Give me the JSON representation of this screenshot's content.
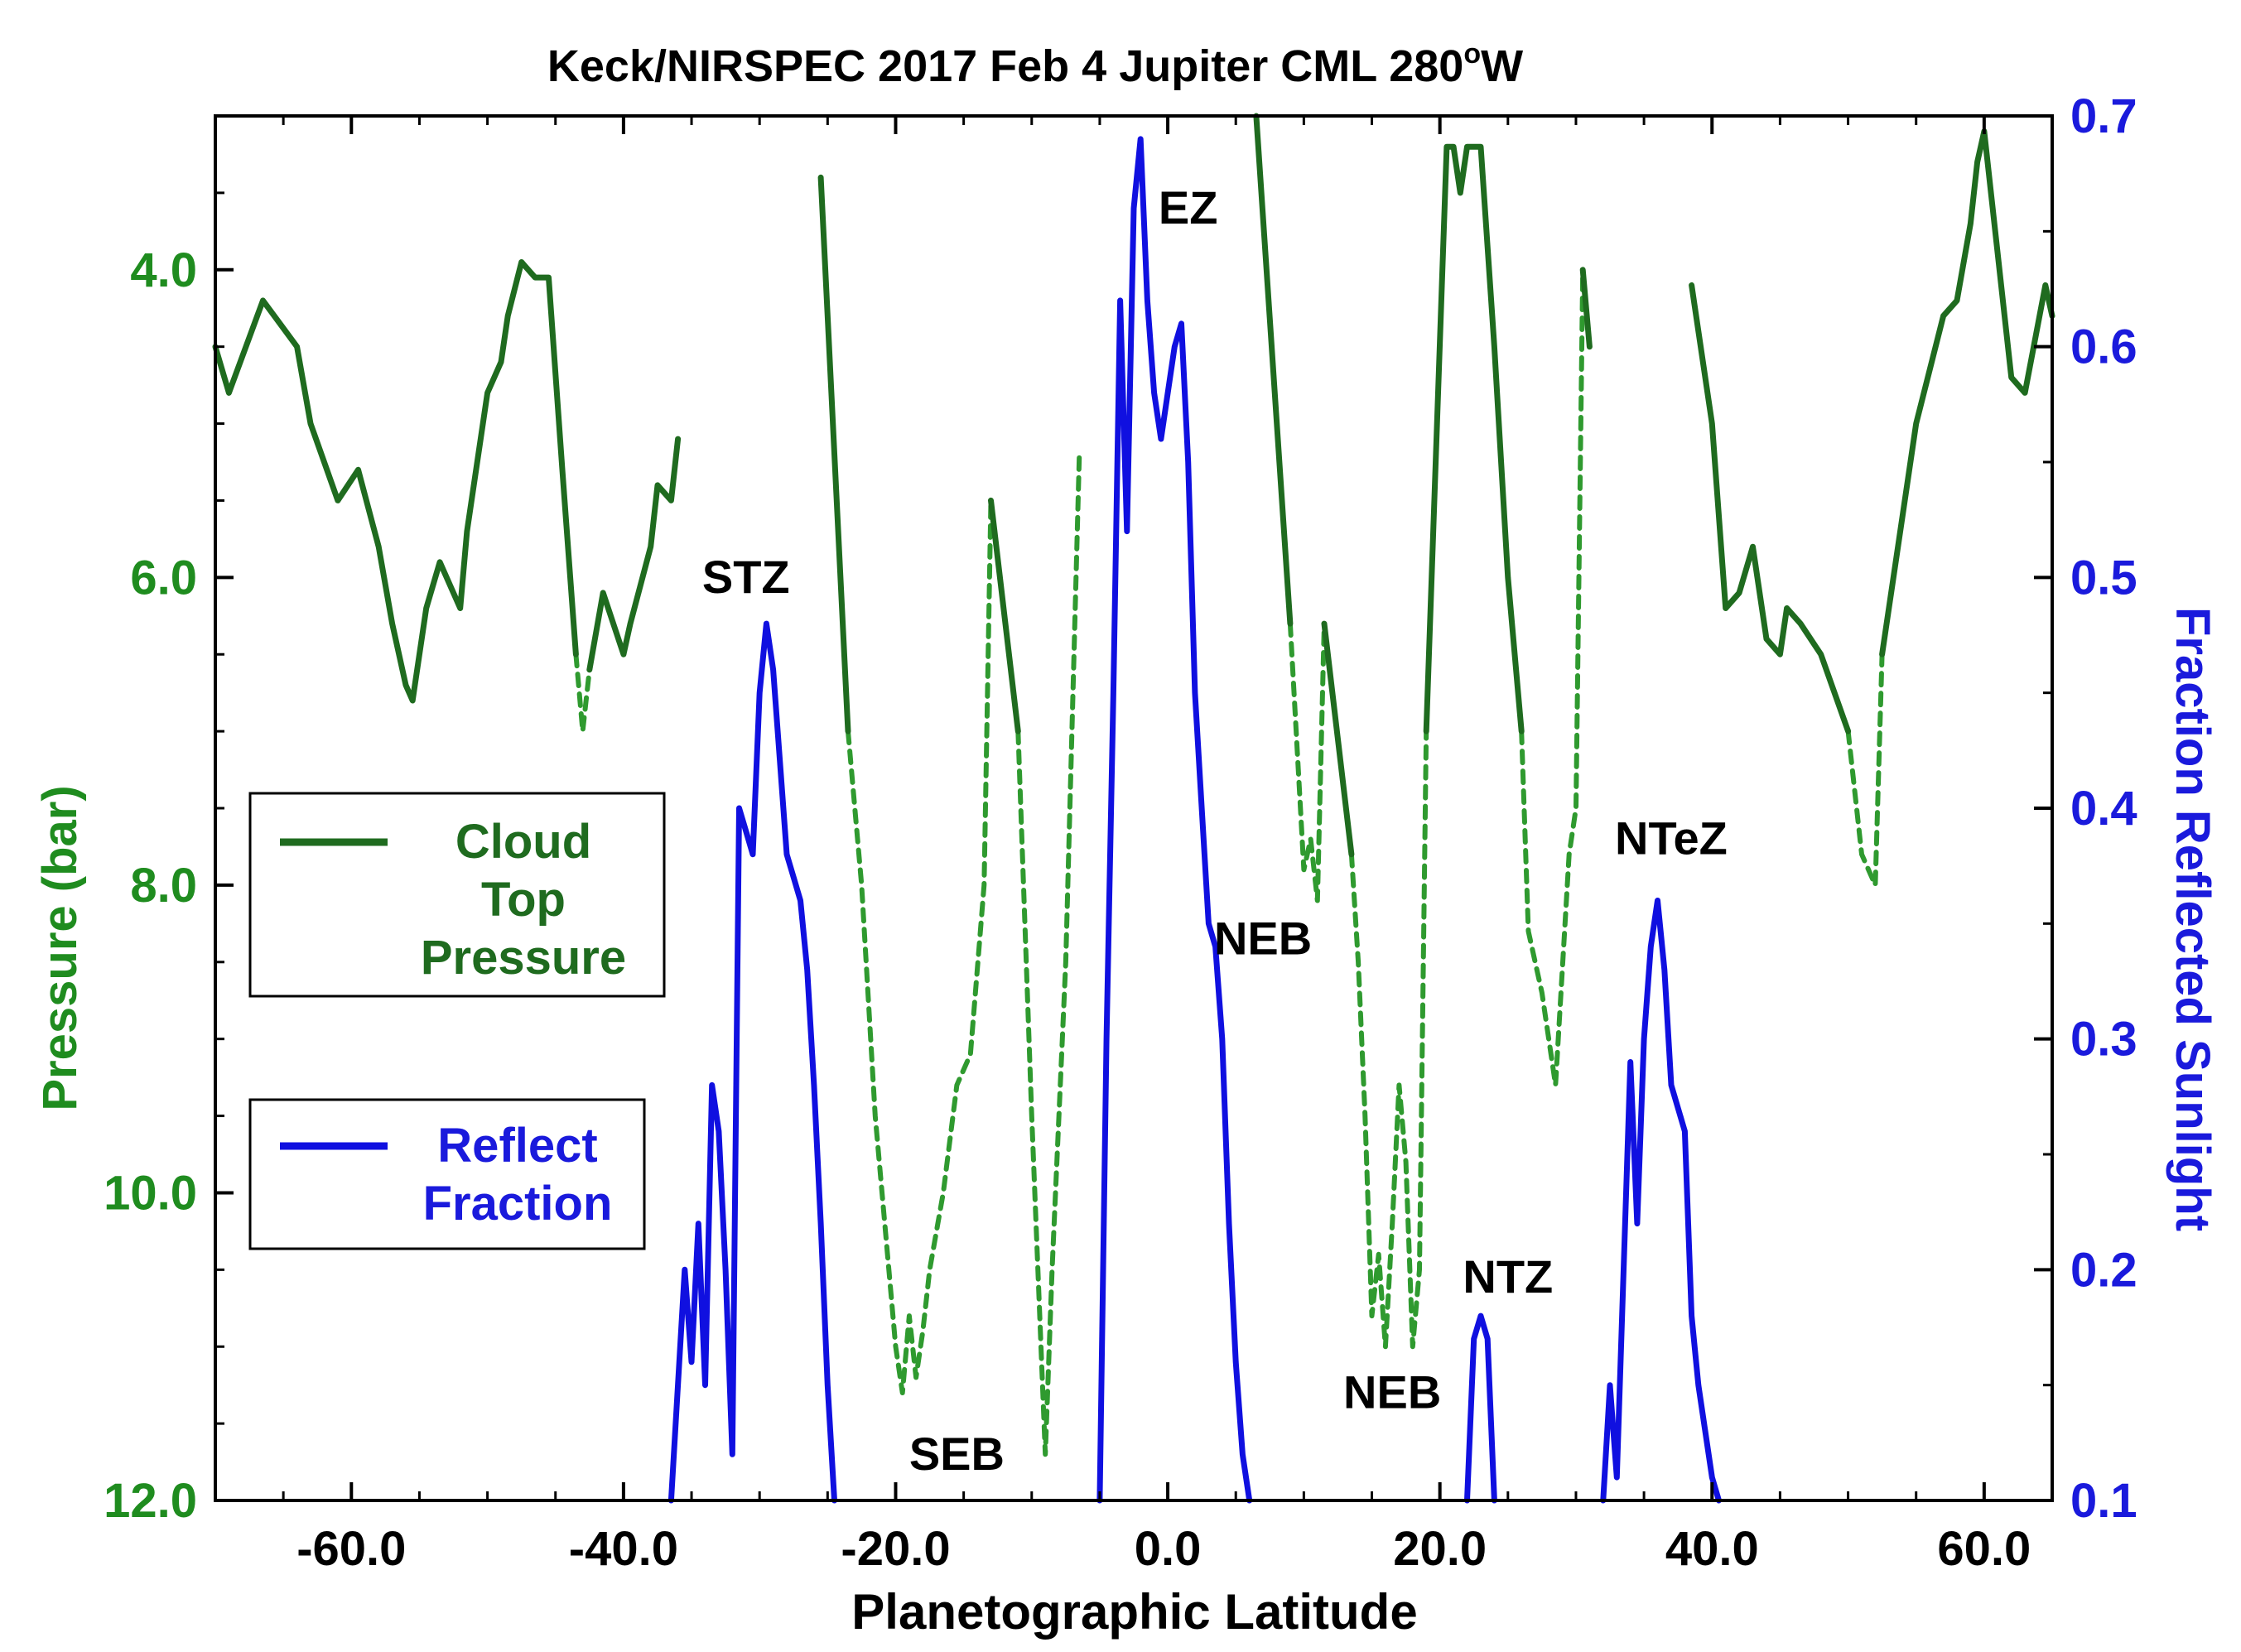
{
  "chart_data": {
    "type": "line",
    "title": "Keck/NIRSPEC 2017 Feb 4 Jupiter CML 280",
    "title_superscript": "o",
    "title_suffix": "W",
    "xlabel": "Planetographic Latitude",
    "ylabel_left": "Pressure (bar)",
    "ylabel_right": "Fraction Reflected Sunlight",
    "xlim": [
      -70,
      65
    ],
    "ylim_left": [
      12.0,
      3.0
    ],
    "ylim_right": [
      0.1,
      0.7
    ],
    "x_ticks": [
      "-60.0",
      "-40.0",
      "-20.0",
      "0.0",
      "20.0",
      "40.0",
      "60.0"
    ],
    "x_tick_values": [
      -60,
      -40,
      -20,
      0,
      20,
      40,
      60
    ],
    "left_ticks": [
      "4.0",
      "6.0",
      "8.0",
      "10.0",
      "12.0"
    ],
    "left_tick_values": [
      4,
      6,
      8,
      10,
      12
    ],
    "right_ticks": [
      "0.7",
      "0.6",
      "0.5",
      "0.4",
      "0.3",
      "0.2",
      "0.1"
    ],
    "right_tick_values": [
      0.7,
      0.6,
      0.5,
      0.4,
      0.3,
      0.2,
      0.1
    ],
    "colors": {
      "cloud": "#1f6b1f",
      "cloud_dashed": "#2f9a2f",
      "reflect": "#1010e0",
      "left_axis": "#1f8c1f",
      "right_axis": "#1a1adc"
    },
    "legend": [
      {
        "lines": [
          "Cloud",
          "Top",
          "Pressure"
        ],
        "color": "#1f6b1f"
      },
      {
        "lines": [
          "Reflect",
          "Fraction"
        ],
        "color": "#1a1adc"
      }
    ],
    "annotations": [
      {
        "text": "STZ",
        "x": -31,
        "y": 6.1
      },
      {
        "text": "EZ",
        "x": 1.5,
        "y": 3.7
      },
      {
        "text": "SEB",
        "x": -15.5,
        "y": 11.8
      },
      {
        "text": "NEB",
        "x": 7,
        "y": 8.45
      },
      {
        "text": "NEB",
        "x": 16.5,
        "y": 11.4
      },
      {
        "text": "NTZ",
        "x": 25,
        "y": 10.65
      },
      {
        "text": "NTeZ",
        "x": 37,
        "y": 7.8
      }
    ],
    "series": [
      {
        "name": "Cloud Top Pressure (solid)",
        "axis": "left",
        "style": "solid",
        "segments": [
          [
            [
              -70,
              4.5
            ],
            [
              -69,
              4.8
            ],
            [
              -66.5,
              4.2
            ],
            [
              -64,
              4.5
            ],
            [
              -63,
              5.0
            ],
            [
              -61,
              5.5
            ],
            [
              -59.5,
              5.3
            ],
            [
              -58,
              5.8
            ],
            [
              -57,
              6.3
            ],
            [
              -56,
              6.7
            ],
            [
              -55.5,
              6.8
            ],
            [
              -54.5,
              6.2
            ],
            [
              -53.5,
              5.9
            ],
            [
              -52,
              6.2
            ],
            [
              -51.5,
              5.7
            ],
            [
              -50,
              4.8
            ],
            [
              -49,
              4.6
            ],
            [
              -48.5,
              4.3
            ],
            [
              -47.5,
              3.95
            ],
            [
              -46.5,
              4.05
            ],
            [
              -45.5,
              4.05
            ],
            [
              -44.5,
              5.3
            ],
            [
              -43.5,
              6.5
            ]
          ],
          [
            [
              -42.5,
              6.6
            ],
            [
              -41.5,
              6.1
            ],
            [
              -40,
              6.5
            ],
            [
              -39.5,
              6.3
            ],
            [
              -38,
              5.8
            ],
            [
              -37.5,
              5.4
            ],
            [
              -36.5,
              5.5
            ],
            [
              -36,
              5.1
            ]
          ],
          [
            [
              -25.5,
              3.4
            ],
            [
              -23.5,
              7.0
            ]
          ],
          [
            [
              -13,
              5.5
            ],
            [
              -11,
              7.0
            ]
          ],
          [
            [
              6.5,
              2.95
            ],
            [
              9,
              6.3
            ]
          ],
          [
            [
              11.5,
              6.3
            ],
            [
              13.5,
              7.8
            ]
          ],
          [
            [
              19,
              7.0
            ],
            [
              20.5,
              3.2
            ],
            [
              21,
              3.2
            ],
            [
              21.5,
              3.5
            ],
            [
              22,
              3.2
            ],
            [
              23,
              3.2
            ],
            [
              24,
              4.5
            ],
            [
              25,
              6.0
            ],
            [
              26,
              7.0
            ]
          ],
          [
            [
              30.5,
              4.0
            ],
            [
              31,
              4.5
            ]
          ],
          [
            [
              38.5,
              4.1
            ],
            [
              40,
              5.0
            ],
            [
              41,
              6.2
            ],
            [
              42,
              6.1
            ],
            [
              43,
              5.8
            ],
            [
              44,
              6.4
            ],
            [
              45,
              6.5
            ],
            [
              45.5,
              6.2
            ],
            [
              46.5,
              6.3
            ],
            [
              48,
              6.5
            ],
            [
              50,
              7.0
            ]
          ],
          [
            [
              52.5,
              6.5
            ],
            [
              54,
              5.6
            ],
            [
              55,
              5.0
            ],
            [
              57,
              4.3
            ],
            [
              58,
              4.2
            ],
            [
              59,
              3.7
            ],
            [
              59.5,
              3.3
            ],
            [
              60,
              3.1
            ],
            [
              62,
              4.7
            ],
            [
              63,
              4.8
            ],
            [
              64.5,
              4.1
            ],
            [
              65,
              4.3
            ]
          ]
        ]
      },
      {
        "name": "Cloud Top Pressure (dashed)",
        "axis": "left",
        "style": "dashed",
        "segments": [
          [
            [
              -43.5,
              6.5
            ],
            [
              -43,
              7.0
            ],
            [
              -42.5,
              6.6
            ]
          ],
          [
            [
              -23.5,
              7.0
            ],
            [
              -22.5,
              8.0
            ],
            [
              -21.5,
              9.5
            ],
            [
              -20.5,
              10.5
            ],
            [
              -20,
              11.0
            ],
            [
              -19.5,
              11.3
            ],
            [
              -19,
              10.8
            ],
            [
              -18.5,
              11.2
            ],
            [
              -18,
              10.9
            ],
            [
              -17.5,
              10.5
            ],
            [
              -16.5,
              10.0
            ],
            [
              -15.5,
              9.3
            ],
            [
              -14.5,
              9.1
            ],
            [
              -13.5,
              8.0
            ],
            [
              -13,
              5.5
            ]
          ],
          [
            [
              -11,
              7.0
            ],
            [
              -10,
              9.5
            ],
            [
              -9,
              11.7
            ],
            [
              -8.5,
              10.5
            ],
            [
              -7.5,
              8.5
            ],
            [
              -6.5,
              5.2
            ]
          ],
          [
            [
              9,
              6.3
            ],
            [
              10,
              7.9
            ],
            [
              10.5,
              7.7
            ],
            [
              11,
              8.1
            ],
            [
              11.5,
              6.3
            ]
          ],
          [
            [
              13.5,
              7.8
            ],
            [
              14,
              8.5
            ],
            [
              14.5,
              9.5
            ],
            [
              15,
              10.8
            ],
            [
              15.5,
              10.4
            ],
            [
              16,
              11.0
            ],
            [
              16.5,
              10.2
            ],
            [
              17,
              9.3
            ],
            [
              17.5,
              9.8
            ],
            [
              18,
              11.0
            ],
            [
              18.5,
              10.5
            ],
            [
              19,
              7.0
            ]
          ],
          [
            [
              26,
              7.0
            ],
            [
              26.5,
              8.3
            ],
            [
              27.5,
              8.7
            ],
            [
              28.5,
              9.3
            ],
            [
              29.5,
              7.8
            ],
            [
              30,
              7.5
            ],
            [
              30.5,
              4.0
            ]
          ],
          [
            [
              50,
              7.0
            ],
            [
              51,
              7.8
            ],
            [
              52,
              8.0
            ],
            [
              52.5,
              6.5
            ]
          ]
        ]
      },
      {
        "name": "Reflect Fraction",
        "axis": "right",
        "style": "solid",
        "segments": [
          [
            [
              -36.5,
              0.1
            ],
            [
              -35.5,
              0.2
            ],
            [
              -35,
              0.16
            ],
            [
              -34.5,
              0.22
            ],
            [
              -34,
              0.15
            ],
            [
              -33.5,
              0.28
            ],
            [
              -33,
              0.26
            ],
            [
              -32.5,
              0.2
            ],
            [
              -32,
              0.12
            ],
            [
              -31.5,
              0.4
            ],
            [
              -31,
              0.39
            ],
            [
              -30.5,
              0.38
            ],
            [
              -30,
              0.45
            ],
            [
              -29.5,
              0.48
            ],
            [
              -29,
              0.46
            ],
            [
              -28.5,
              0.42
            ],
            [
              -28,
              0.38
            ],
            [
              -27.5,
              0.37
            ],
            [
              -27,
              0.36
            ],
            [
              -26.5,
              0.33
            ],
            [
              -26,
              0.28
            ],
            [
              -25.5,
              0.22
            ],
            [
              -25,
              0.15
            ],
            [
              -24.5,
              0.1
            ]
          ],
          [
            [
              -5,
              0.1
            ],
            [
              -4.5,
              0.3
            ],
            [
              -4,
              0.45
            ],
            [
              -3.5,
              0.62
            ],
            [
              -3,
              0.52
            ],
            [
              -2.5,
              0.66
            ],
            [
              -2,
              0.69
            ],
            [
              -1.5,
              0.62
            ],
            [
              -1,
              0.58
            ],
            [
              -0.5,
              0.56
            ],
            [
              0,
              0.58
            ],
            [
              0.5,
              0.6
            ],
            [
              1,
              0.61
            ],
            [
              1.5,
              0.55
            ],
            [
              2,
              0.45
            ],
            [
              2.5,
              0.4
            ],
            [
              3,
              0.35
            ],
            [
              3.5,
              0.34
            ],
            [
              4,
              0.3
            ],
            [
              4.5,
              0.22
            ],
            [
              5,
              0.16
            ],
            [
              5.5,
              0.12
            ],
            [
              6,
              0.1
            ]
          ],
          [
            [
              22,
              0.1
            ],
            [
              22.5,
              0.17
            ],
            [
              23,
              0.18
            ],
            [
              23.5,
              0.17
            ],
            [
              24,
              0.1
            ]
          ],
          [
            [
              32,
              0.1
            ],
            [
              32.5,
              0.15
            ],
            [
              33,
              0.11
            ],
            [
              33.5,
              0.2
            ],
            [
              34,
              0.29
            ],
            [
              34.5,
              0.22
            ],
            [
              35,
              0.3
            ],
            [
              35.5,
              0.34
            ],
            [
              36,
              0.36
            ],
            [
              36.5,
              0.33
            ],
            [
              37,
              0.28
            ],
            [
              38,
              0.26
            ],
            [
              38.5,
              0.18
            ],
            [
              39,
              0.15
            ],
            [
              40,
              0.11
            ],
            [
              40.5,
              0.1
            ]
          ]
        ]
      }
    ]
  }
}
